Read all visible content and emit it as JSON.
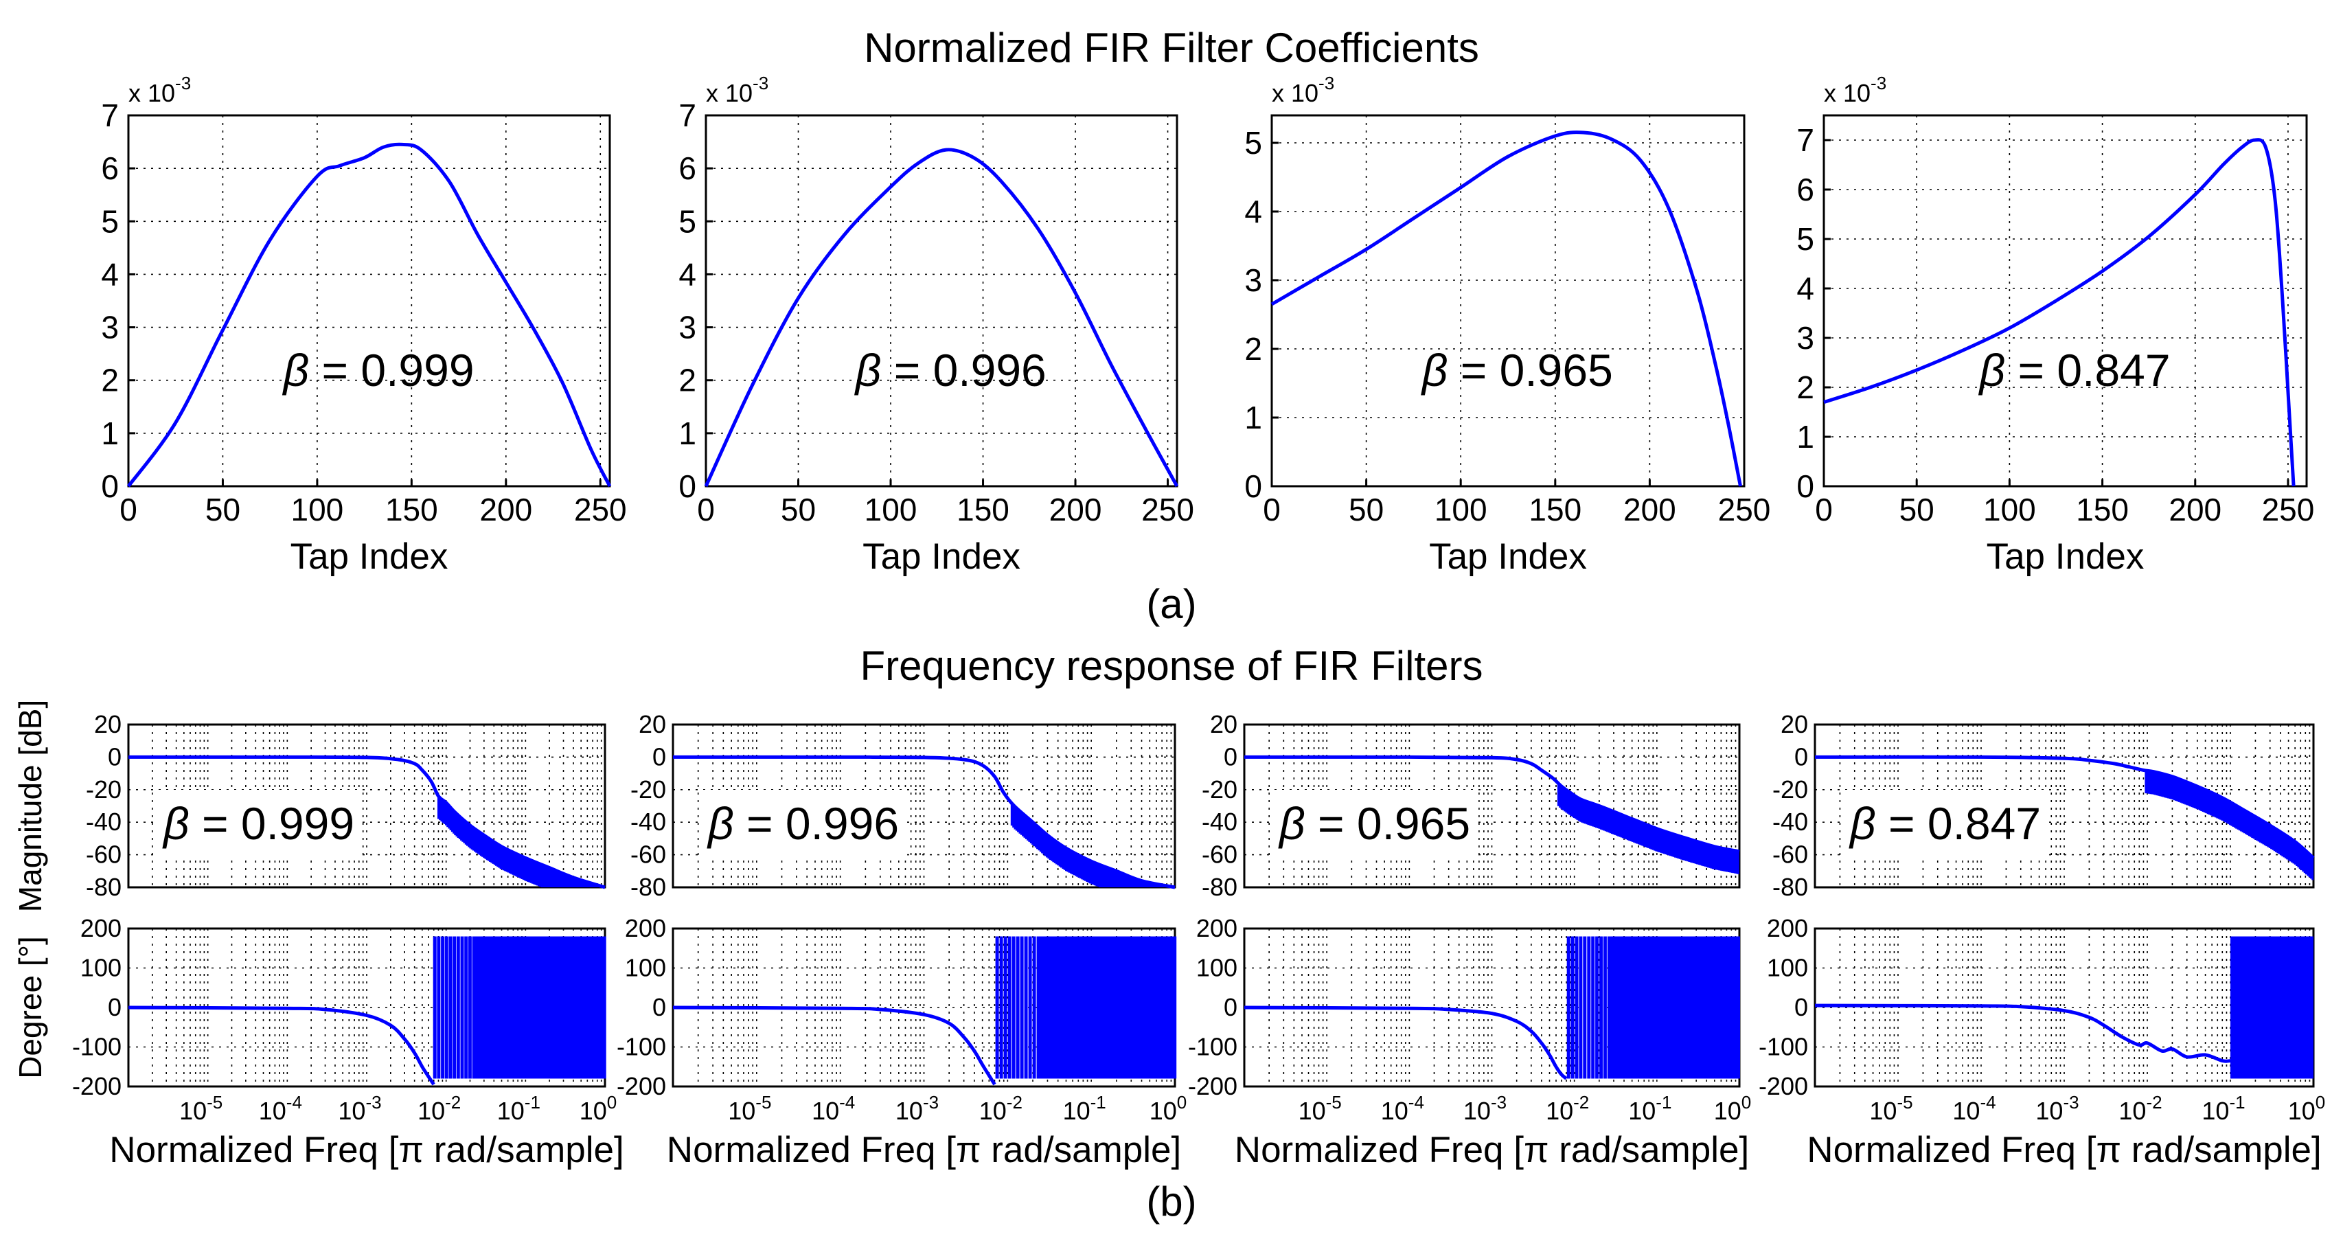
{
  "titles": {
    "coefficients": "Normalized FIR Filter Coefficients",
    "frequency": "Frequency response of FIR Filters",
    "label_a": "(a)",
    "label_b": "(b)"
  },
  "colors": {
    "line": "#0000ff",
    "axes": "#000000"
  },
  "chart_data": [
    {
      "type": "line",
      "panel": "coefficients",
      "title": "",
      "xlabel": "Tap Index",
      "ylabel": "",
      "exponent_label": "x 10",
      "exponent": "-3",
      "annotation_symbol": "β",
      "annotation_value": "= 0.999",
      "xlim": [
        0,
        255
      ],
      "ylim": [
        0,
        7
      ],
      "xticks": [
        "0",
        "50",
        "100",
        "150",
        "200",
        "250"
      ],
      "yticks": [
        "0",
        "1",
        "2",
        "3",
        "4",
        "5",
        "6",
        "7"
      ],
      "x": [
        0,
        25,
        50,
        75,
        100,
        112,
        125,
        135,
        145,
        155,
        170,
        185,
        200,
        215,
        230,
        245,
        255
      ],
      "y": [
        0.0,
        1.2,
        2.95,
        4.65,
        5.85,
        6.05,
        6.2,
        6.4,
        6.45,
        6.35,
        5.75,
        4.75,
        3.85,
        2.95,
        1.95,
        0.7,
        0.0
      ]
    },
    {
      "type": "line",
      "panel": "coefficients",
      "title": "",
      "xlabel": "Tap Index",
      "ylabel": "",
      "exponent_label": "x 10",
      "exponent": "-3",
      "annotation_symbol": "β",
      "annotation_value": "= 0.996",
      "xlim": [
        0,
        255
      ],
      "ylim": [
        0,
        7
      ],
      "xticks": [
        "0",
        "50",
        "100",
        "150",
        "200",
        "250"
      ],
      "yticks": [
        "0",
        "1",
        "2",
        "3",
        "4",
        "5",
        "6",
        "7"
      ],
      "x": [
        0,
        25,
        50,
        75,
        100,
        115,
        130,
        145,
        160,
        180,
        200,
        220,
        240,
        255
      ],
      "y": [
        0.0,
        1.9,
        3.55,
        4.75,
        5.65,
        6.1,
        6.35,
        6.2,
        5.75,
        4.85,
        3.65,
        2.25,
        0.95,
        0.0
      ]
    },
    {
      "type": "line",
      "panel": "coefficients",
      "title": "",
      "xlabel": "Tap Index",
      "ylabel": "",
      "exponent_label": "x 10",
      "exponent": "-3",
      "annotation_symbol": "β",
      "annotation_value": "= 0.965",
      "xlim": [
        0,
        250
      ],
      "ylim": [
        0,
        5.4
      ],
      "xticks": [
        "0",
        "50",
        "100",
        "150",
        "200",
        "250"
      ],
      "yticks": [
        "0",
        "1",
        "2",
        "3",
        "4",
        "5"
      ],
      "x": [
        0,
        25,
        50,
        75,
        100,
        125,
        150,
        165,
        180,
        195,
        210,
        225,
        235,
        242,
        248
      ],
      "y": [
        2.65,
        3.05,
        3.45,
        3.9,
        4.35,
        4.8,
        5.1,
        5.15,
        5.05,
        4.75,
        4.05,
        2.85,
        1.75,
        0.85,
        0.0
      ]
    },
    {
      "type": "line",
      "panel": "coefficients",
      "title": "",
      "xlabel": "Tap Index",
      "ylabel": "",
      "exponent_label": "x 10",
      "exponent": "-3",
      "annotation_symbol": "β",
      "annotation_value": "= 0.847",
      "xlim": [
        0,
        260
      ],
      "ylim": [
        0,
        7.5
      ],
      "xticks": [
        "0",
        "50",
        "100",
        "150",
        "200",
        "250"
      ],
      "yticks": [
        "0",
        "1",
        "2",
        "3",
        "4",
        "5",
        "6",
        "7"
      ],
      "x": [
        0,
        25,
        50,
        75,
        100,
        125,
        150,
        175,
        200,
        215,
        225,
        232,
        238,
        243,
        247,
        250,
        253
      ],
      "y": [
        1.7,
        2.0,
        2.35,
        2.75,
        3.2,
        3.75,
        4.35,
        5.05,
        5.9,
        6.5,
        6.85,
        7.0,
        6.85,
        5.8,
        3.8,
        1.9,
        0.0
      ]
    },
    {
      "type": "line",
      "panel": "magnitude",
      "xscale": "log",
      "xlim": [
        1e-06,
        1
      ],
      "ylim": [
        -80,
        20
      ],
      "ylabel": "Magnitude [dB]",
      "yticks": [
        "20",
        "0",
        "-20",
        "-40",
        "-60",
        "-80"
      ],
      "annotation_symbol": "β",
      "annotation_value": "= 0.999",
      "x": [
        1e-06,
        0.0001,
        0.001,
        0.0025,
        0.004,
        0.005,
        0.0065,
        0.008,
        0.01,
        0.013,
        0.02,
        0.03,
        0.05,
        0.1,
        0.2,
        0.4,
        1
      ],
      "y": [
        0,
        0,
        -0.2,
        -1.5,
        -4,
        -8,
        -15,
        -24,
        -28,
        -34,
        -42,
        -48,
        -55,
        -62,
        -68,
        -74,
        -80
      ]
    },
    {
      "type": "line",
      "panel": "magnitude",
      "xscale": "log",
      "xlim": [
        1e-06,
        1
      ],
      "ylim": [
        -80,
        20
      ],
      "ylabel": "",
      "yticks": [
        "20",
        "0",
        "-20",
        "-40",
        "-60",
        "-80"
      ],
      "annotation_symbol": "β",
      "annotation_value": "= 0.996",
      "x": [
        1e-06,
        0.0001,
        0.001,
        0.003,
        0.005,
        0.007,
        0.009,
        0.012,
        0.02,
        0.03,
        0.05,
        0.1,
        0.2,
        0.4,
        1
      ],
      "y": [
        0,
        0,
        -0.2,
        -1.5,
        -5,
        -12,
        -22,
        -30,
        -40,
        -48,
        -56,
        -64,
        -70,
        -76,
        -80
      ]
    },
    {
      "type": "line",
      "panel": "magnitude",
      "xscale": "log",
      "xlim": [
        1e-06,
        1
      ],
      "ylim": [
        -80,
        20
      ],
      "ylabel": "",
      "yticks": [
        "20",
        "0",
        "-20",
        "-40",
        "-60",
        "-80"
      ],
      "annotation_symbol": "β",
      "annotation_value": "= 0.965",
      "x": [
        1e-06,
        0.0001,
        0.001,
        0.002,
        0.003,
        0.004,
        0.0055,
        0.007,
        0.009,
        0.012,
        0.02,
        0.05,
        0.1,
        0.2,
        0.5,
        1
      ],
      "y": [
        0,
        0,
        -0.4,
        -1.5,
        -4,
        -8,
        -13,
        -18,
        -22,
        -26,
        -30,
        -38,
        -44,
        -49,
        -55,
        -58
      ]
    },
    {
      "type": "line",
      "panel": "magnitude",
      "xscale": "log",
      "xlim": [
        1e-06,
        1
      ],
      "ylim": [
        -80,
        20
      ],
      "ylabel": "",
      "yticks": [
        "20",
        "0",
        "-20",
        "-40",
        "-60",
        "-80"
      ],
      "annotation_symbol": "β",
      "annotation_value": "= 0.847",
      "x": [
        1e-06,
        0.0001,
        0.001,
        0.002,
        0.004,
        0.006,
        0.009,
        0.012,
        0.02,
        0.04,
        0.08,
        0.15,
        0.3,
        0.6,
        1
      ],
      "y": [
        0,
        0,
        -0.8,
        -2,
        -4,
        -6,
        -8,
        -9,
        -12,
        -18,
        -25,
        -33,
        -42,
        -52,
        -62
      ]
    },
    {
      "type": "line",
      "panel": "phase",
      "xscale": "log",
      "xlim": [
        1e-06,
        1
      ],
      "ylim": [
        -200,
        200
      ],
      "xlabel": "Normalized Freq [π rad/sample]",
      "ylabel": "Degree [°]",
      "yticks": [
        "200",
        "100",
        "0",
        "-100",
        "-200"
      ],
      "xtick_base": "10",
      "xtick_exponents": [
        "-5",
        "-4",
        "-3",
        "-2",
        "-1",
        "0"
      ],
      "x": [
        1e-06,
        0.0001,
        0.0003,
        0.001,
        0.002,
        0.003,
        0.004,
        0.005,
        0.006,
        0.007
      ],
      "y": [
        0,
        -2,
        -5,
        -20,
        -45,
        -80,
        -115,
        -150,
        -175,
        -195
      ],
      "wrap_start": 0.0072
    },
    {
      "type": "line",
      "panel": "phase",
      "xscale": "log",
      "xlim": [
        1e-06,
        1
      ],
      "ylim": [
        -200,
        200
      ],
      "xlabel": "Normalized Freq [π rad/sample]",
      "ylabel": "",
      "yticks": [
        "200",
        "100",
        "0",
        "-100",
        "-200"
      ],
      "xtick_base": "10",
      "xtick_exponents": [
        "-5",
        "-4",
        "-3",
        "-2",
        "-1",
        "0"
      ],
      "x": [
        1e-06,
        0.0001,
        0.0003,
        0.001,
        0.002,
        0.003,
        0.004,
        0.005,
        0.006,
        0.007
      ],
      "y": [
        0,
        -2,
        -5,
        -18,
        -40,
        -75,
        -110,
        -145,
        -172,
        -195
      ],
      "wrap_start": 0.0075
    },
    {
      "type": "line",
      "panel": "phase",
      "xscale": "log",
      "xlim": [
        1e-06,
        1
      ],
      "ylim": [
        -200,
        200
      ],
      "xlabel": "Normalized Freq [π rad/sample]",
      "ylabel": "",
      "yticks": [
        "200",
        "100",
        "0",
        "-100",
        "-200"
      ],
      "xtick_base": "10",
      "xtick_exponents": [
        "-5",
        "-4",
        "-3",
        "-2",
        "-1",
        "0"
      ],
      "x": [
        1e-06,
        0.0001,
        0.0003,
        0.001,
        0.002,
        0.003,
        0.004,
        0.005,
        0.006,
        0.007,
        0.008
      ],
      "y": [
        0,
        -2,
        -5,
        -15,
        -35,
        -60,
        -90,
        -120,
        -150,
        -170,
        -180
      ],
      "wrap_start": 0.0085
    },
    {
      "type": "line",
      "panel": "phase",
      "xscale": "log",
      "xlim": [
        1e-06,
        1
      ],
      "ylim": [
        -200,
        200
      ],
      "xlabel": "Normalized Freq [π rad/sample]",
      "ylabel": "",
      "yticks": [
        "200",
        "100",
        "0",
        "-100",
        "-200"
      ],
      "xtick_base": "10",
      "xtick_exponents": [
        "-5",
        "-4",
        "-3",
        "-2",
        "-1",
        "0"
      ],
      "x": [
        1e-06,
        0.0001,
        0.0003,
        0.001,
        0.002,
        0.003,
        0.005,
        0.008,
        0.01,
        0.015,
        0.02,
        0.03,
        0.05,
        0.08,
        0.1
      ],
      "y": [
        5,
        4,
        2,
        -8,
        -25,
        -45,
        -75,
        -95,
        -90,
        -110,
        -105,
        -125,
        -120,
        -135,
        -135
      ],
      "wrap_start": 0.1
    }
  ]
}
